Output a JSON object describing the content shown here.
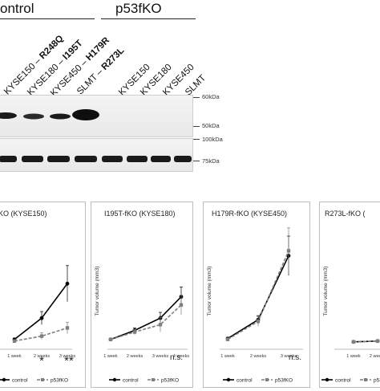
{
  "groups": {
    "control": "ontrol",
    "p53fko": "p53fKO"
  },
  "lanes": {
    "c1": {
      "cell": "KYSE150 – ",
      "mut": "R248Q"
    },
    "c2": {
      "cell": "KYSE180 – ",
      "mut": "I195T"
    },
    "c3": {
      "cell": "KYSE450 – ",
      "mut": "H179R"
    },
    "c4": {
      "cell": "SLMT – ",
      "mut": "R273L"
    },
    "k1": "KYSE150",
    "k2": "KYSE180",
    "k3": "KYSE450",
    "k4": "SLMT"
  },
  "markers": {
    "m60": "60kDa",
    "m50": "50kDa",
    "m100": "100kDa",
    "m75": "75kDa"
  },
  "colors": {
    "control": "#000000",
    "p53fko": "#7f7f7f"
  },
  "legend": {
    "control": "control",
    "p53fko": "p53fKO"
  },
  "ylabel": "Tumor volume (mm3)",
  "weeks": [
    "1 week",
    "2 weeks",
    "3 weeks",
    "4 weeks"
  ],
  "panels": [
    {
      "title": "KO (KYSE150)",
      "significance": [
        "*",
        "**"
      ],
      "chart_data": {
        "type": "line",
        "title": "KO (KYSE150)",
        "x": [
          "1 week",
          "2 weeks",
          "3 weeks"
        ],
        "ylim": [
          0,
          700
        ],
        "series": [
          {
            "name": "control",
            "values": [
              60,
              190,
              400
            ],
            "err": [
              8,
              40,
              110
            ]
          },
          {
            "name": "p53fKO",
            "values": [
              50,
              80,
              130
            ],
            "err": [
              8,
              20,
              35
            ]
          }
        ],
        "annotations": [
          "*",
          "**"
        ]
      }
    },
    {
      "title": "I195T-fKO (KYSE180)",
      "significance": [
        "n.s."
      ],
      "chart_data": {
        "type": "line",
        "title": "I195T-fKO (KYSE180)",
        "x": [
          "1 week",
          "2 weeks",
          "3 weeks",
          "4 weeks"
        ],
        "ylim": [
          0,
          700
        ],
        "series": [
          {
            "name": "control",
            "values": [
              60,
              115,
              190,
              320
            ],
            "err": [
              6,
              15,
              35,
              60
            ]
          },
          {
            "name": "p53fKO",
            "values": [
              60,
              105,
              150,
              270
            ],
            "err": [
              6,
              15,
              45,
              60
            ]
          }
        ],
        "annotations": [
          "n.s."
        ]
      }
    },
    {
      "title": "H179R-fKO (KYSE450)",
      "significance": [
        "n.s."
      ],
      "chart_data": {
        "type": "line",
        "title": "H179R-fKO (KYSE450)",
        "x": [
          "1 week",
          "2 weeks",
          "3 weeks"
        ],
        "ylim": [
          0,
          700
        ],
        "series": [
          {
            "name": "control",
            "values": [
              65,
              180,
              570
            ],
            "err": [
              8,
              25,
              120
            ]
          },
          {
            "name": "p53fKO",
            "values": [
              60,
              170,
              600
            ],
            "err": [
              8,
              30,
              140
            ]
          }
        ],
        "annotations": [
          "n.s."
        ]
      }
    },
    {
      "title": "R273L-fKO (",
      "significance": [],
      "chart_data": {
        "type": "line",
        "title": "R273L-fKO (",
        "x": [
          "1 week",
          "2 weeks"
        ],
        "ylim": [
          0,
          700
        ],
        "series": [
          {
            "name": "control",
            "values": [
              45,
              50
            ],
            "err": [
              5,
              8
            ]
          },
          {
            "name": "p53fKO",
            "values": [
              45,
              50
            ],
            "err": [
              5,
              8
            ]
          }
        ],
        "annotations": []
      }
    }
  ]
}
